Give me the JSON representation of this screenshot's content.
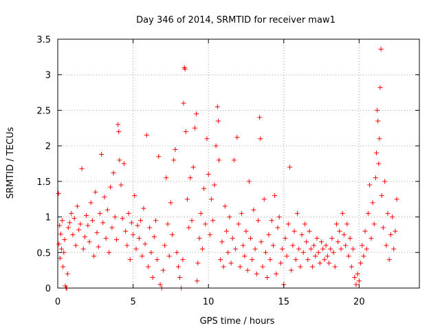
{
  "chart_data": {
    "type": "scatter",
    "title": "Day 346 of 2014, SRMTID for receiver maw1",
    "xlabel": "GPS time / hours",
    "ylabel": "SRMTID / TECUs",
    "xlim": [
      0,
      24
    ],
    "ylim": [
      0,
      3.5
    ],
    "x_ticks": [
      0,
      5,
      10,
      15,
      20
    ],
    "x_tick_labels": [
      "0",
      "5",
      "10",
      "15",
      "20"
    ],
    "y_ticks": [
      0,
      0.5,
      1,
      1.5,
      2,
      2.5,
      3,
      3.5
    ],
    "y_tick_labels": [
      "0",
      "0.5",
      "1",
      "1.5",
      "2",
      "2.5",
      "3",
      "3.5"
    ],
    "grid": true,
    "marker": "+",
    "color": "#ff0000",
    "series": [
      {
        "name": "SRMTID",
        "points": [
          [
            0.05,
            1.33
          ],
          [
            0.08,
            0.62
          ],
          [
            0.12,
            0.88
          ],
          [
            0.15,
            0.42
          ],
          [
            0.2,
            0.76
          ],
          [
            0.25,
            0.55
          ],
          [
            0.3,
            0.95
          ],
          [
            0.35,
            0.3
          ],
          [
            0.4,
            0.5
          ],
          [
            0.45,
            0.68
          ],
          [
            0.5,
            0.03
          ],
          [
            0.55,
            0.0
          ],
          [
            0.6,
            0.0
          ],
          [
            0.65,
            0.2
          ],
          [
            0.7,
            0.85
          ],
          [
            0.8,
            0.92
          ],
          [
            0.9,
            1.05
          ],
          [
            1.0,
            0.75
          ],
          [
            1.1,
            0.98
          ],
          [
            1.2,
            0.6
          ],
          [
            1.3,
            1.15
          ],
          [
            1.4,
            0.82
          ],
          [
            1.5,
            0.9
          ],
          [
            1.6,
            1.68
          ],
          [
            1.7,
            0.55
          ],
          [
            1.8,
            0.72
          ],
          [
            1.9,
            1.02
          ],
          [
            2.0,
            0.88
          ],
          [
            2.1,
            0.65
          ],
          [
            2.2,
            1.2
          ],
          [
            2.3,
            0.95
          ],
          [
            2.4,
            0.45
          ],
          [
            2.5,
            1.35
          ],
          [
            2.6,
            0.78
          ],
          [
            2.7,
            0.58
          ],
          [
            2.8,
            1.05
          ],
          [
            2.9,
            1.88
          ],
          [
            3.0,
            0.92
          ],
          [
            3.1,
            1.28
          ],
          [
            3.2,
            0.7
          ],
          [
            3.3,
            1.1
          ],
          [
            3.4,
            0.5
          ],
          [
            3.5,
            1.42
          ],
          [
            3.6,
            0.85
          ],
          [
            3.7,
            1.62
          ],
          [
            3.8,
            1.0
          ],
          [
            3.9,
            0.68
          ],
          [
            4.0,
            2.3
          ],
          [
            4.05,
            2.2
          ],
          [
            4.1,
            1.8
          ],
          [
            4.2,
            1.45
          ],
          [
            4.3,
            0.98
          ],
          [
            4.4,
            1.75
          ],
          [
            4.5,
            0.8
          ],
          [
            4.6,
            0.6
          ],
          [
            4.7,
            1.05
          ],
          [
            4.8,
            0.4
          ],
          [
            4.9,
            0.92
          ],
          [
            5.0,
            0.75
          ],
          [
            5.1,
            1.3
          ],
          [
            5.2,
            0.55
          ],
          [
            5.3,
            0.88
          ],
          [
            5.4,
            0.7
          ],
          [
            5.5,
            0.95
          ],
          [
            5.6,
            0.45
          ],
          [
            5.7,
            1.12
          ],
          [
            5.8,
            0.62
          ],
          [
            5.9,
            2.15
          ],
          [
            6.0,
            0.3
          ],
          [
            6.1,
            0.85
          ],
          [
            6.2,
            0.5
          ],
          [
            6.3,
            0.15
          ],
          [
            6.4,
            0.72
          ],
          [
            6.5,
            0.95
          ],
          [
            6.6,
            0.4
          ],
          [
            6.7,
            1.85
          ],
          [
            6.8,
            0.05
          ],
          [
            6.9,
            0.0
          ],
          [
            7.0,
            0.25
          ],
          [
            7.1,
            0.6
          ],
          [
            7.2,
            1.55
          ],
          [
            7.3,
            0.9
          ],
          [
            7.4,
            0.45
          ],
          [
            7.5,
            1.2
          ],
          [
            7.6,
            0.75
          ],
          [
            7.7,
            1.8
          ],
          [
            7.8,
            1.95
          ],
          [
            7.9,
            0.5
          ],
          [
            8.0,
            0.3
          ],
          [
            8.1,
            0.15
          ],
          [
            8.2,
            0.0
          ],
          [
            8.3,
            0.4
          ],
          [
            8.35,
            2.6
          ],
          [
            8.4,
            3.1
          ],
          [
            8.45,
            3.08
          ],
          [
            8.5,
            2.2
          ],
          [
            8.6,
            1.25
          ],
          [
            8.7,
            0.85
          ],
          [
            8.8,
            1.55
          ],
          [
            8.9,
            0.95
          ],
          [
            9.0,
            1.7
          ],
          [
            9.1,
            2.25
          ],
          [
            9.2,
            2.45
          ],
          [
            9.25,
            0.1
          ],
          [
            9.3,
            0.35
          ],
          [
            9.4,
            0.7
          ],
          [
            9.5,
            1.05
          ],
          [
            9.6,
            0.55
          ],
          [
            9.7,
            1.4
          ],
          [
            9.8,
            0.9
          ],
          [
            9.9,
            2.1
          ],
          [
            10.0,
            1.6
          ],
          [
            10.1,
            0.75
          ],
          [
            10.2,
            1.25
          ],
          [
            10.3,
            0.95
          ],
          [
            10.4,
            1.45
          ],
          [
            10.5,
            2.0
          ],
          [
            10.6,
            2.55
          ],
          [
            10.65,
            2.35
          ],
          [
            10.7,
            1.8
          ],
          [
            10.8,
            0.4
          ],
          [
            10.9,
            0.65
          ],
          [
            11.0,
            0.3
          ],
          [
            11.1,
            1.15
          ],
          [
            11.2,
            0.8
          ],
          [
            11.3,
            0.5
          ],
          [
            11.4,
            1.0
          ],
          [
            11.5,
            0.35
          ],
          [
            11.6,
            0.7
          ],
          [
            11.7,
            1.8
          ],
          [
            11.8,
            0.55
          ],
          [
            11.9,
            2.12
          ],
          [
            12.0,
            0.9
          ],
          [
            12.1,
            0.3
          ],
          [
            12.2,
            1.05
          ],
          [
            12.3,
            0.6
          ],
          [
            12.4,
            0.45
          ],
          [
            12.5,
            0.8
          ],
          [
            12.6,
            0.25
          ],
          [
            12.7,
            1.5
          ],
          [
            12.8,
            0.7
          ],
          [
            12.9,
            0.4
          ],
          [
            13.0,
            1.1
          ],
          [
            13.1,
            0.55
          ],
          [
            13.2,
            0.2
          ],
          [
            13.3,
            0.95
          ],
          [
            13.4,
            2.4
          ],
          [
            13.45,
            2.1
          ],
          [
            13.5,
            0.65
          ],
          [
            13.6,
            0.3
          ],
          [
            13.7,
            1.25
          ],
          [
            13.8,
            0.5
          ],
          [
            13.9,
            0.15
          ],
          [
            14.0,
            0.75
          ],
          [
            14.1,
            0.4
          ],
          [
            14.2,
            0.95
          ],
          [
            14.3,
            0.6
          ],
          [
            14.4,
            1.3
          ],
          [
            14.5,
            0.2
          ],
          [
            14.6,
            0.85
          ],
          [
            14.7,
            1.0
          ],
          [
            14.8,
            0.35
          ],
          [
            14.9,
            0.55
          ],
          [
            15.0,
            0.05
          ],
          [
            15.1,
            0.7
          ],
          [
            15.2,
            0.45
          ],
          [
            15.3,
            0.9
          ],
          [
            15.4,
            1.7
          ],
          [
            15.5,
            0.25
          ],
          [
            15.6,
            0.6
          ],
          [
            15.7,
            0.8
          ],
          [
            15.8,
            0.4
          ],
          [
            15.9,
            1.05
          ],
          [
            16.0,
            0.55
          ],
          [
            16.1,
            0.3
          ],
          [
            16.2,
            0.75
          ],
          [
            16.3,
            0.5
          ],
          [
            16.4,
            0.9
          ],
          [
            16.5,
            0.65
          ],
          [
            16.6,
            0.4
          ],
          [
            16.7,
            0.8
          ],
          [
            16.8,
            0.55
          ],
          [
            16.9,
            0.3
          ],
          [
            17.0,
            0.6
          ],
          [
            17.1,
            0.45
          ],
          [
            17.2,
            0.7
          ],
          [
            17.3,
            0.5
          ],
          [
            17.4,
            0.35
          ],
          [
            17.5,
            0.65
          ],
          [
            17.6,
            0.55
          ],
          [
            17.7,
            0.4
          ],
          [
            17.8,
            0.6
          ],
          [
            17.9,
            0.45
          ],
          [
            18.0,
            0.35
          ],
          [
            18.1,
            0.55
          ],
          [
            18.2,
            0.7
          ],
          [
            18.3,
            0.5
          ],
          [
            18.4,
            0.3
          ],
          [
            18.5,
            0.9
          ],
          [
            18.6,
            0.65
          ],
          [
            18.7,
            0.8
          ],
          [
            18.8,
            0.55
          ],
          [
            18.9,
            1.05
          ],
          [
            19.0,
            0.75
          ],
          [
            19.1,
            0.6
          ],
          [
            19.2,
            0.9
          ],
          [
            19.3,
            0.45
          ],
          [
            19.4,
            0.7
          ],
          [
            19.5,
            0.3
          ],
          [
            19.6,
            0.55
          ],
          [
            19.7,
            0.15
          ],
          [
            19.8,
            0.05
          ],
          [
            19.9,
            0.2
          ],
          [
            20.0,
            0.1
          ],
          [
            20.1,
            0.35
          ],
          [
            20.2,
            0.6
          ],
          [
            20.3,
            0.45
          ],
          [
            20.4,
            0.8
          ],
          [
            20.5,
            0.55
          ],
          [
            20.6,
            1.05
          ],
          [
            20.7,
            1.45
          ],
          [
            20.8,
            0.7
          ],
          [
            20.9,
            1.2
          ],
          [
            21.0,
            0.9
          ],
          [
            21.1,
            1.55
          ],
          [
            21.15,
            1.9
          ],
          [
            21.2,
            2.5
          ],
          [
            21.25,
            2.35
          ],
          [
            21.3,
            1.75
          ],
          [
            21.35,
            2.1
          ],
          [
            21.4,
            2.82
          ],
          [
            21.45,
            3.36
          ],
          [
            21.5,
            1.3
          ],
          [
            21.6,
            0.85
          ],
          [
            21.7,
            1.5
          ],
          [
            21.8,
            0.6
          ],
          [
            21.9,
            1.05
          ],
          [
            22.0,
            0.4
          ],
          [
            22.1,
            0.75
          ],
          [
            22.2,
            1.0
          ],
          [
            22.3,
            0.55
          ],
          [
            22.4,
            0.8
          ],
          [
            22.5,
            1.25
          ]
        ]
      }
    ]
  }
}
